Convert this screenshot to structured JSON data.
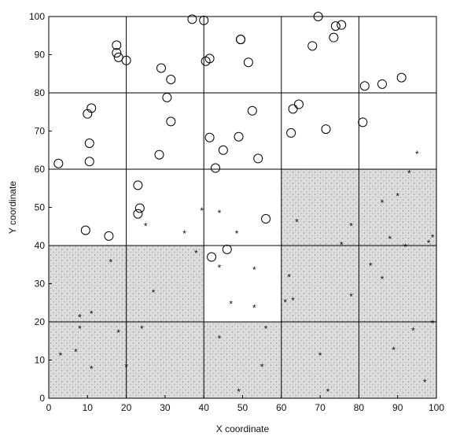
{
  "chart_data": {
    "type": "scatter",
    "title": "",
    "xlabel": "X coordinate",
    "ylabel": "Y coordinate",
    "xlim": [
      0,
      100
    ],
    "ylim": [
      0,
      100
    ],
    "xticks": [
      "0",
      "10",
      "20",
      "30",
      "40",
      "50",
      "60",
      "70",
      "80",
      "90",
      "100"
    ],
    "yticks": [
      "0",
      "10",
      "20",
      "30",
      "40",
      "50",
      "60",
      "70",
      "80",
      "90",
      "100"
    ],
    "grid": {
      "x_lines": [
        20,
        40,
        60,
        80
      ],
      "y_lines": [
        20,
        40,
        60,
        80
      ]
    },
    "shaded_regions": [
      {
        "x": [
          0,
          20
        ],
        "y": [
          0,
          40
        ]
      },
      {
        "x": [
          20,
          40
        ],
        "y": [
          0,
          40
        ]
      },
      {
        "x": [
          40,
          60
        ],
        "y": [
          0,
          20
        ]
      },
      {
        "x": [
          60,
          80
        ],
        "y": [
          0,
          60
        ]
      },
      {
        "x": [
          80,
          100
        ],
        "y": [
          0,
          60
        ]
      }
    ],
    "series": [
      {
        "marker": "circle",
        "x": [
          2.5,
          9.5,
          15.5,
          10,
          11,
          10.5,
          10.5,
          17.5,
          17.5,
          18,
          20,
          23,
          23.5,
          23,
          29,
          28.5,
          30.5,
          31.5,
          31.5,
          37,
          40,
          40.5,
          41.5,
          41.5,
          43,
          45,
          49,
          49.5,
          52.5,
          54,
          49.5,
          51.5,
          56,
          42,
          46,
          63,
          64.5,
          71.5,
          62.5,
          68,
          69.5,
          73.5,
          74,
          75.5,
          81,
          81.5,
          86,
          91
        ],
        "y": [
          61.5,
          44,
          42.5,
          74.5,
          76,
          66.8,
          62,
          92.5,
          90.5,
          89.3,
          88.5,
          55.8,
          49.8,
          48.3,
          86.5,
          63.8,
          78.8,
          83.5,
          72.5,
          99.3,
          99,
          88.3,
          89,
          68.3,
          60.3,
          65,
          68.5,
          94,
          75.3,
          62.8,
          94,
          88,
          47,
          37,
          39,
          75.8,
          77,
          70.5,
          69.5,
          92.3,
          100,
          94.5,
          97.5,
          97.8,
          72.3,
          81.8,
          82.3,
          84
        ]
      },
      {
        "marker": "star",
        "x": [
          25,
          35,
          39.5,
          44,
          48.5,
          38,
          44,
          53,
          47,
          53,
          61,
          63,
          62,
          64,
          86,
          90,
          93,
          95,
          88,
          99,
          98,
          92,
          75.5,
          78,
          86,
          8,
          8,
          16,
          11,
          7,
          11,
          20,
          27,
          24,
          44,
          49,
          55,
          3,
          18,
          56,
          70,
          72,
          89,
          94,
          97,
          99,
          83,
          78
        ],
        "y": [
          45,
          43,
          49,
          48.3,
          43,
          37.8,
          34,
          33.5,
          24.5,
          23.5,
          25,
          25.5,
          31.5,
          46,
          51,
          52.8,
          58.8,
          63.8,
          41.5,
          42,
          40.5,
          39.5,
          40,
          45,
          31,
          21,
          18,
          35.5,
          22,
          12,
          7.5,
          8,
          27.5,
          18,
          15.5,
          1.5,
          8,
          11,
          17,
          18,
          11,
          1.5,
          12.5,
          17.5,
          4,
          19.5,
          34.5,
          26.5
        ]
      }
    ]
  }
}
